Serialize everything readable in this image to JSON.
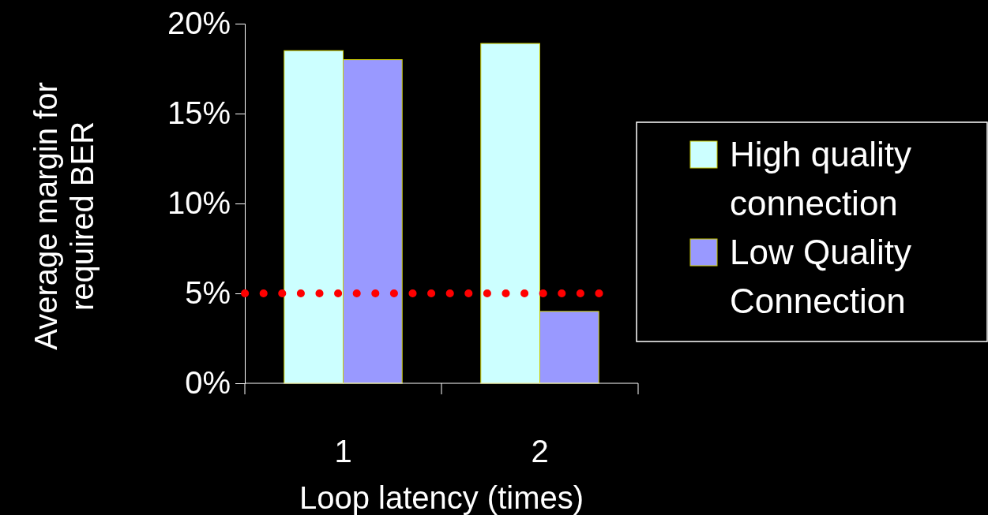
{
  "chart_data": {
    "type": "bar",
    "xlabel": "Loop latency (times)",
    "ylabel": "Average margin for required BER",
    "categories": [
      "1",
      "2"
    ],
    "series": [
      {
        "name": "High quality connection",
        "color": "#ccffff",
        "values": [
          18.5,
          18.9
        ]
      },
      {
        "name": "Low Quality Connection",
        "color": "#9999ff",
        "values": [
          18.0,
          4.0
        ]
      }
    ],
    "ylim": [
      0,
      20
    ],
    "yticks": [
      {
        "value": 0,
        "label": "0%"
      },
      {
        "value": 5,
        "label": "5%"
      },
      {
        "value": 10,
        "label": "10%"
      },
      {
        "value": 15,
        "label": "15%"
      },
      {
        "value": 20,
        "label": "20%"
      }
    ],
    "ref_lines": [
      {
        "axis": "y",
        "value": 5,
        "color": "#ff0000",
        "line_style": "dotted"
      }
    ],
    "legend": "right"
  }
}
